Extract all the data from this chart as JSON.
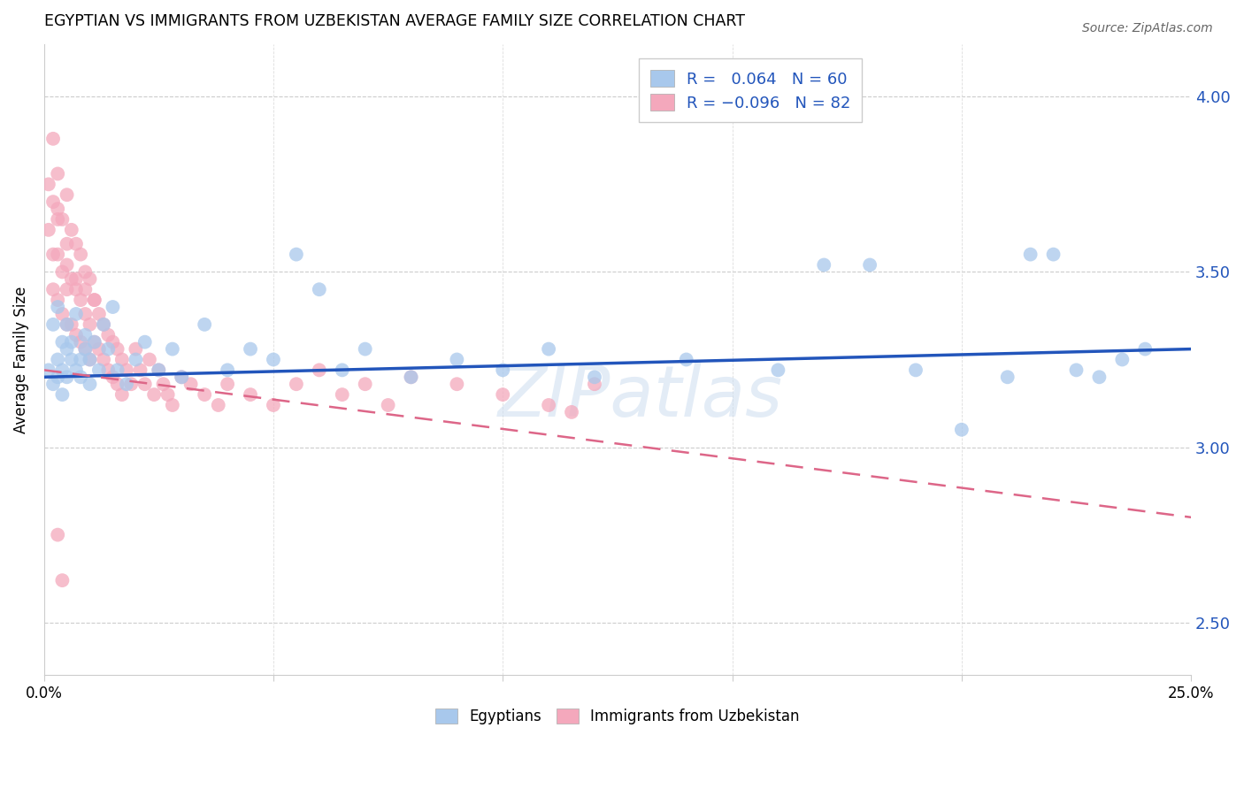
{
  "title": "EGYPTIAN VS IMMIGRANTS FROM UZBEKISTAN AVERAGE FAMILY SIZE CORRELATION CHART",
  "source": "Source: ZipAtlas.com",
  "ylabel": "Average Family Size",
  "yticks_right": [
    2.5,
    3.0,
    3.5,
    4.0
  ],
  "xlim": [
    0.0,
    0.25
  ],
  "ylim": [
    2.35,
    4.15
  ],
  "blue_color": "#A8C8EC",
  "pink_color": "#F4A8BC",
  "blue_line_color": "#2255BB",
  "pink_line_color": "#DD6688",
  "R_blue": 0.064,
  "N_blue": 60,
  "R_pink": -0.096,
  "N_pink": 82,
  "blue_line_y0": 3.2,
  "blue_line_y1": 3.28,
  "pink_line_y0": 3.22,
  "pink_line_y1": 2.8,
  "blue_scatter_x": [
    0.001,
    0.002,
    0.002,
    0.003,
    0.003,
    0.003,
    0.004,
    0.004,
    0.004,
    0.005,
    0.005,
    0.005,
    0.006,
    0.006,
    0.007,
    0.007,
    0.008,
    0.008,
    0.009,
    0.009,
    0.01,
    0.01,
    0.011,
    0.012,
    0.013,
    0.014,
    0.015,
    0.016,
    0.018,
    0.02,
    0.022,
    0.025,
    0.028,
    0.03,
    0.035,
    0.04,
    0.045,
    0.05,
    0.055,
    0.06,
    0.065,
    0.07,
    0.08,
    0.09,
    0.1,
    0.11,
    0.12,
    0.14,
    0.16,
    0.17,
    0.18,
    0.19,
    0.2,
    0.21,
    0.215,
    0.22,
    0.225,
    0.23,
    0.235,
    0.24
  ],
  "blue_scatter_y": [
    3.22,
    3.35,
    3.18,
    3.4,
    3.25,
    3.2,
    3.3,
    3.22,
    3.15,
    3.28,
    3.35,
    3.2,
    3.3,
    3.25,
    3.38,
    3.22,
    3.25,
    3.2,
    3.28,
    3.32,
    3.18,
    3.25,
    3.3,
    3.22,
    3.35,
    3.28,
    3.4,
    3.22,
    3.18,
    3.25,
    3.3,
    3.22,
    3.28,
    3.2,
    3.35,
    3.22,
    3.28,
    3.25,
    3.55,
    3.45,
    3.22,
    3.28,
    3.2,
    3.25,
    3.22,
    3.28,
    3.2,
    3.25,
    3.22,
    3.52,
    3.52,
    3.22,
    3.05,
    3.2,
    3.55,
    3.55,
    3.22,
    3.2,
    3.25,
    3.28
  ],
  "pink_scatter_x": [
    0.001,
    0.001,
    0.002,
    0.002,
    0.002,
    0.003,
    0.003,
    0.003,
    0.003,
    0.004,
    0.004,
    0.004,
    0.005,
    0.005,
    0.005,
    0.005,
    0.006,
    0.006,
    0.006,
    0.007,
    0.007,
    0.007,
    0.008,
    0.008,
    0.008,
    0.009,
    0.009,
    0.009,
    0.01,
    0.01,
    0.01,
    0.011,
    0.011,
    0.012,
    0.012,
    0.013,
    0.013,
    0.014,
    0.014,
    0.015,
    0.015,
    0.016,
    0.016,
    0.017,
    0.017,
    0.018,
    0.019,
    0.02,
    0.021,
    0.022,
    0.023,
    0.024,
    0.025,
    0.026,
    0.027,
    0.028,
    0.03,
    0.032,
    0.035,
    0.038,
    0.04,
    0.045,
    0.05,
    0.055,
    0.06,
    0.065,
    0.07,
    0.075,
    0.08,
    0.09,
    0.1,
    0.11,
    0.12,
    0.002,
    0.003,
    0.005,
    0.007,
    0.009,
    0.011,
    0.003,
    0.004,
    0.115
  ],
  "pink_scatter_y": [
    3.75,
    3.62,
    3.7,
    3.55,
    3.45,
    3.78,
    3.68,
    3.55,
    3.42,
    3.65,
    3.5,
    3.38,
    3.72,
    3.58,
    3.45,
    3.35,
    3.62,
    3.48,
    3.35,
    3.58,
    3.45,
    3.32,
    3.55,
    3.42,
    3.3,
    3.5,
    3.38,
    3.28,
    3.48,
    3.35,
    3.25,
    3.42,
    3.3,
    3.38,
    3.28,
    3.35,
    3.25,
    3.32,
    3.22,
    3.3,
    3.2,
    3.28,
    3.18,
    3.25,
    3.15,
    3.22,
    3.18,
    3.28,
    3.22,
    3.18,
    3.25,
    3.15,
    3.22,
    3.18,
    3.15,
    3.12,
    3.2,
    3.18,
    3.15,
    3.12,
    3.18,
    3.15,
    3.12,
    3.18,
    3.22,
    3.15,
    3.18,
    3.12,
    3.2,
    3.18,
    3.15,
    3.12,
    3.18,
    3.88,
    3.65,
    3.52,
    3.48,
    3.45,
    3.42,
    2.75,
    2.62,
    3.1
  ]
}
